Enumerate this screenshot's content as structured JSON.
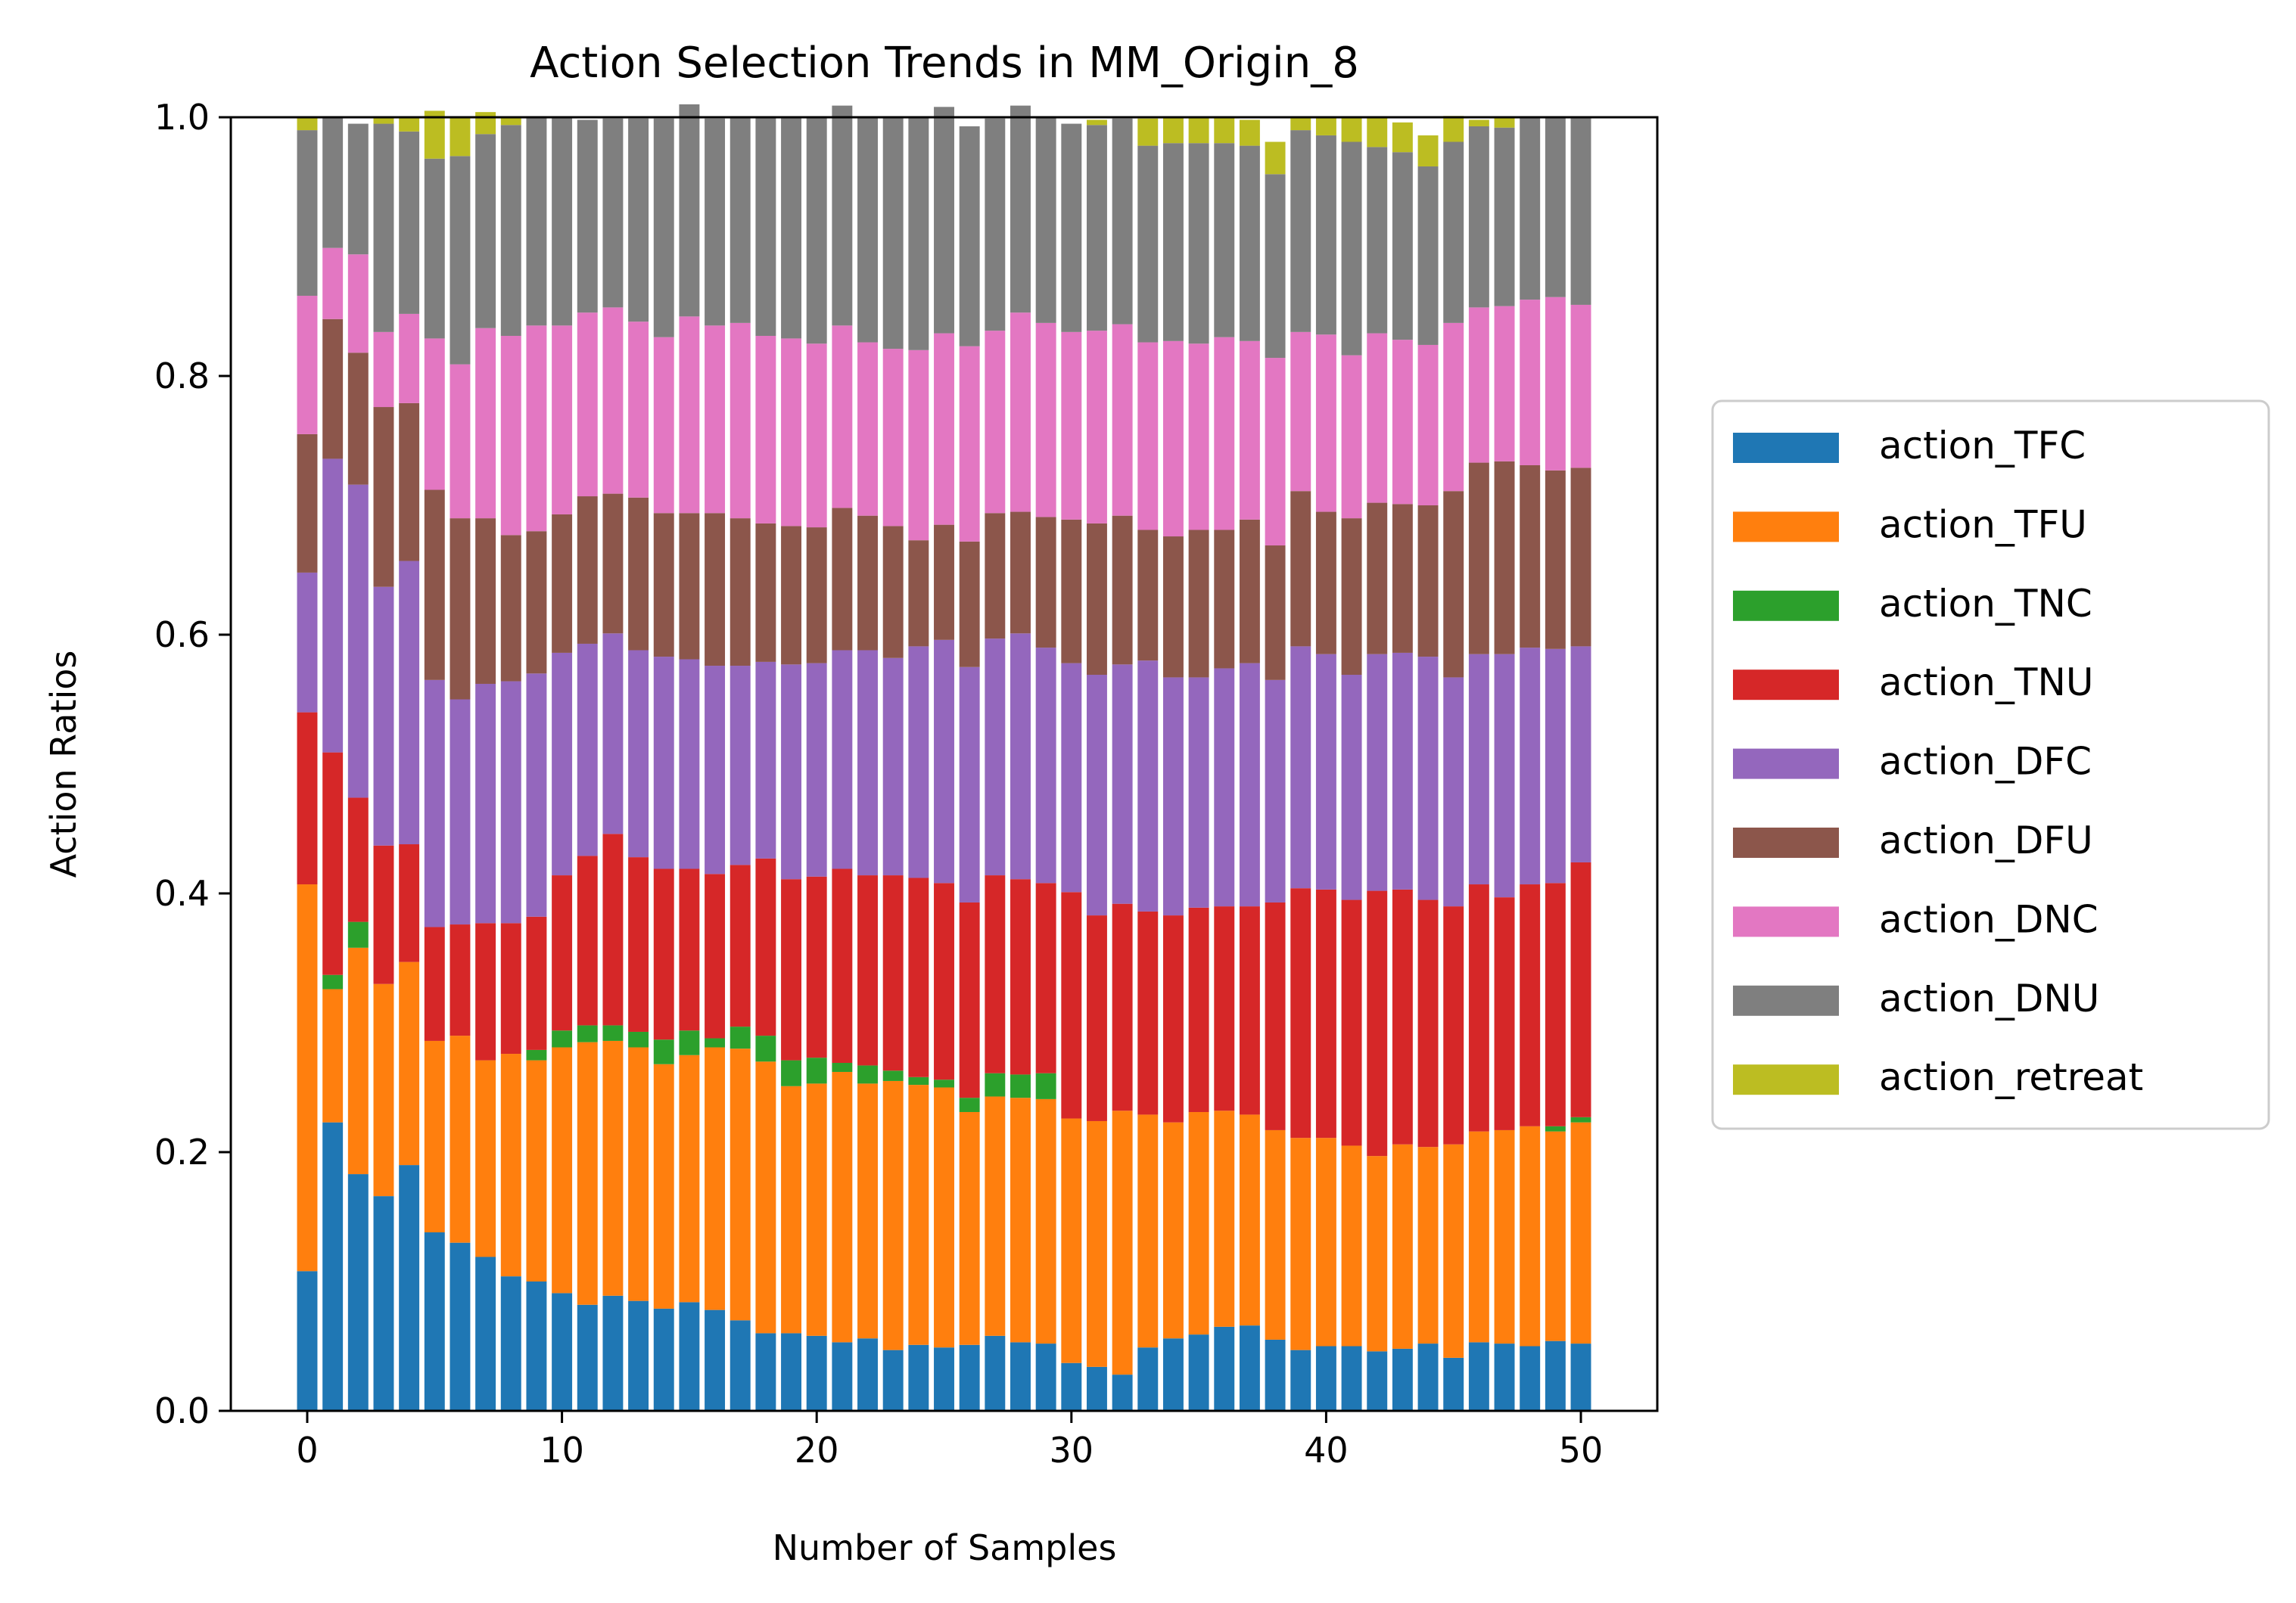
{
  "chart_data": {
    "type": "bar",
    "stacked": true,
    "title": "Action Selection Trends in MM_Origin_8",
    "xlabel": "Number of Samples",
    "ylabel": "Action Ratios",
    "xlim": [
      -3,
      53
    ],
    "ylim": [
      0,
      1
    ],
    "xticks": [
      0,
      10,
      20,
      30,
      40,
      50
    ],
    "xtick_labels": [
      "0",
      "10",
      "20",
      "30",
      "40",
      "50"
    ],
    "yticks": [
      0,
      0.2,
      0.4,
      0.6,
      0.8,
      1.0
    ],
    "ytick_labels": [
      "0.0",
      "0.2",
      "0.4",
      "0.6",
      "0.8",
      "1.0"
    ],
    "grid": false,
    "legend_position": "right, outside plot",
    "x": [
      0,
      1,
      2,
      3,
      4,
      5,
      6,
      7,
      8,
      9,
      10,
      11,
      12,
      13,
      14,
      15,
      16,
      17,
      18,
      19,
      20,
      21,
      22,
      23,
      24,
      25,
      26,
      27,
      28,
      29,
      30,
      31,
      32,
      33,
      34,
      35,
      36,
      37,
      38,
      39,
      40,
      41,
      42,
      43,
      44,
      45,
      46,
      47,
      48,
      49,
      50
    ],
    "series": [
      {
        "name": "action_TFC",
        "color": "#1f77b4",
        "values": [
          0.108,
          0.223,
          0.183,
          0.166,
          0.19,
          0.138,
          0.13,
          0.119,
          0.104,
          0.1,
          0.091,
          0.082,
          0.089,
          0.085,
          0.079,
          0.084,
          0.078,
          0.07,
          0.06,
          0.06,
          0.058,
          0.053,
          0.056,
          0.047,
          0.051,
          0.049,
          0.051,
          0.058,
          0.053,
          0.052,
          0.037,
          0.034,
          0.028,
          0.049,
          0.056,
          0.059,
          0.065,
          0.066,
          0.055,
          0.047,
          0.05,
          0.05,
          0.046,
          0.048,
          0.052,
          0.041,
          0.053,
          0.052,
          0.05,
          0.054,
          0.052
        ]
      },
      {
        "name": "action_TFU",
        "color": "#ff7f0e",
        "values": [
          0.299,
          0.103,
          0.175,
          0.164,
          0.157,
          0.148,
          0.16,
          0.152,
          0.172,
          0.171,
          0.19,
          0.203,
          0.197,
          0.196,
          0.189,
          0.191,
          0.203,
          0.21,
          0.21,
          0.191,
          0.195,
          0.209,
          0.197,
          0.208,
          0.201,
          0.201,
          0.18,
          0.185,
          0.189,
          0.189,
          0.189,
          0.19,
          0.204,
          0.18,
          0.167,
          0.172,
          0.167,
          0.163,
          0.162,
          0.164,
          0.161,
          0.155,
          0.151,
          0.158,
          0.152,
          0.165,
          0.163,
          0.165,
          0.17,
          0.162,
          0.171
        ]
      },
      {
        "name": "action_TNC",
        "color": "#2ca02c",
        "values": [
          0,
          0.011,
          0.02,
          0,
          0,
          0,
          0,
          0,
          0,
          0.008,
          0.013,
          0.013,
          0.012,
          0.012,
          0.019,
          0.019,
          0.007,
          0.017,
          0.02,
          0.02,
          0.02,
          0.007,
          0.014,
          0.008,
          0.006,
          0.006,
          0.011,
          0.018,
          0.018,
          0.02,
          0,
          0,
          0,
          0,
          0,
          0,
          0,
          0,
          0,
          0,
          0,
          0,
          0,
          0,
          0,
          0,
          0,
          0,
          0,
          0.004,
          0.004
        ]
      },
      {
        "name": "action_TNU",
        "color": "#d62728",
        "values": [
          0.133,
          0.172,
          0.096,
          0.107,
          0.091,
          0.088,
          0.086,
          0.106,
          0.101,
          0.103,
          0.12,
          0.131,
          0.148,
          0.135,
          0.132,
          0.125,
          0.127,
          0.125,
          0.137,
          0.14,
          0.14,
          0.15,
          0.147,
          0.151,
          0.154,
          0.152,
          0.151,
          0.153,
          0.151,
          0.147,
          0.175,
          0.159,
          0.16,
          0.157,
          0.16,
          0.158,
          0.158,
          0.161,
          0.176,
          0.193,
          0.192,
          0.19,
          0.205,
          0.197,
          0.191,
          0.184,
          0.191,
          0.18,
          0.187,
          0.188,
          0.197
        ]
      },
      {
        "name": "action_DFC",
        "color": "#9467bd",
        "values": [
          0.108,
          0.227,
          0.242,
          0.2,
          0.219,
          0.191,
          0.174,
          0.185,
          0.187,
          0.188,
          0.172,
          0.164,
          0.155,
          0.16,
          0.164,
          0.162,
          0.161,
          0.154,
          0.152,
          0.166,
          0.165,
          0.169,
          0.174,
          0.168,
          0.179,
          0.188,
          0.182,
          0.183,
          0.19,
          0.182,
          0.177,
          0.186,
          0.185,
          0.194,
          0.184,
          0.178,
          0.184,
          0.188,
          0.172,
          0.187,
          0.182,
          0.174,
          0.183,
          0.183,
          0.188,
          0.177,
          0.178,
          0.188,
          0.183,
          0.181,
          0.167
        ]
      },
      {
        "name": "action_DFU",
        "color": "#8c564b",
        "values": [
          0.107,
          0.108,
          0.102,
          0.139,
          0.122,
          0.147,
          0.14,
          0.128,
          0.113,
          0.11,
          0.107,
          0.114,
          0.108,
          0.118,
          0.111,
          0.113,
          0.118,
          0.114,
          0.107,
          0.107,
          0.105,
          0.11,
          0.104,
          0.102,
          0.082,
          0.089,
          0.097,
          0.097,
          0.094,
          0.101,
          0.111,
          0.117,
          0.115,
          0.101,
          0.109,
          0.114,
          0.107,
          0.111,
          0.104,
          0.12,
          0.11,
          0.121,
          0.117,
          0.115,
          0.117,
          0.144,
          0.148,
          0.149,
          0.141,
          0.138,
          0.138
        ]
      },
      {
        "name": "action_DNC",
        "color": "#e377c2",
        "values": [
          0.107,
          0.055,
          0.076,
          0.058,
          0.069,
          0.117,
          0.119,
          0.147,
          0.154,
          0.159,
          0.146,
          0.142,
          0.144,
          0.136,
          0.136,
          0.152,
          0.145,
          0.151,
          0.145,
          0.145,
          0.142,
          0.141,
          0.134,
          0.137,
          0.147,
          0.148,
          0.151,
          0.141,
          0.154,
          0.15,
          0.145,
          0.149,
          0.148,
          0.145,
          0.151,
          0.144,
          0.149,
          0.138,
          0.145,
          0.123,
          0.137,
          0.126,
          0.131,
          0.127,
          0.124,
          0.13,
          0.12,
          0.12,
          0.128,
          0.134,
          0.126
        ]
      },
      {
        "name": "action_DNU",
        "color": "#7f7f7f",
        "values": [
          0.128,
          0.101,
          0.101,
          0.161,
          0.141,
          0.139,
          0.161,
          0.15,
          0.163,
          0.161,
          0.161,
          0.149,
          0.146,
          0.157,
          0.169,
          0.164,
          0.16,
          0.159,
          0.169,
          0.171,
          0.175,
          0.17,
          0.174,
          0.179,
          0.18,
          0.175,
          0.17,
          0.164,
          0.16,
          0.159,
          0.161,
          0.159,
          0.159,
          0.152,
          0.153,
          0.155,
          0.15,
          0.151,
          0.142,
          0.156,
          0.154,
          0.165,
          0.144,
          0.145,
          0.138,
          0.14,
          0.14,
          0.138,
          0.141,
          0.139,
          0.145
        ]
      },
      {
        "name": "action_retreat",
        "color": "#bcbd22",
        "values": [
          0.01,
          0,
          0,
          0.005,
          0.011,
          0.037,
          0.03,
          0.017,
          0.006,
          0,
          0,
          0,
          0,
          0,
          0,
          0,
          0,
          0,
          0,
          0,
          0,
          0,
          0,
          0,
          0,
          0,
          0,
          0,
          0,
          0,
          0,
          0.004,
          0,
          0.021,
          0.02,
          0.02,
          0.02,
          0.02,
          0.025,
          0.01,
          0.014,
          0.019,
          0.023,
          0.023,
          0.024,
          0.02,
          0.005,
          0.008,
          0,
          0,
          0
        ]
      }
    ]
  }
}
